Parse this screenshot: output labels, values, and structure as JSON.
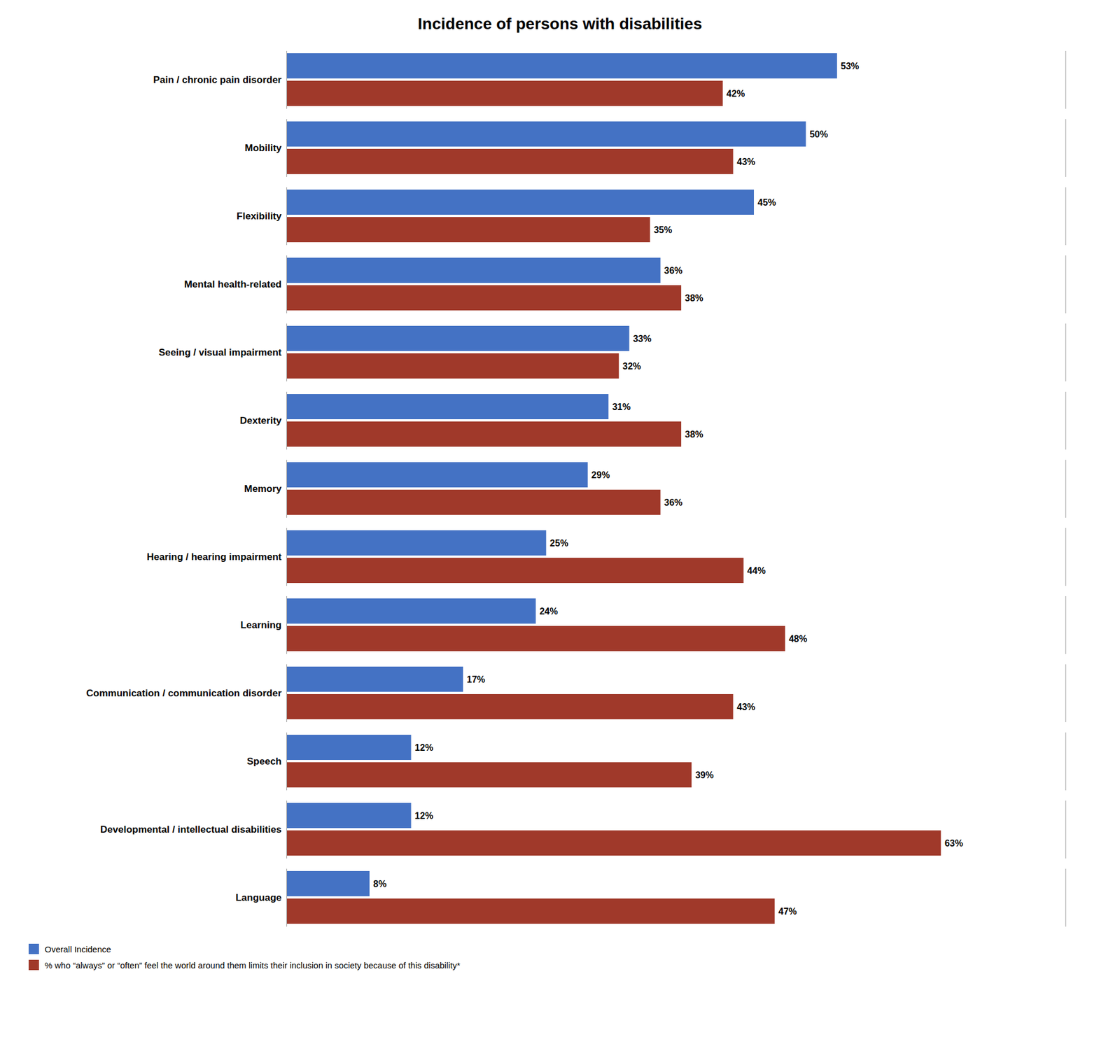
{
  "chart_data": {
    "type": "bar",
    "orientation": "horizontal",
    "title": "Incidence of persons with disabilities",
    "categories": [
      "Pain / chronic pain disorder",
      "Mobility",
      "Flexibility",
      "Mental health-related",
      "Seeing / visual impairment",
      "Dexterity",
      "Memory",
      "Hearing / hearing impairment",
      "Learning",
      "Communication / communication disorder",
      "Speech",
      "Developmental / intellectual disabilities",
      "Language"
    ],
    "series": [
      {
        "name": "Overall Incidence",
        "color": "#4472C4",
        "values": [
          53,
          50,
          45,
          36,
          33,
          31,
          29,
          25,
          24,
          17,
          12,
          12,
          8
        ],
        "value_labels": [
          "53%",
          "50%",
          "45%",
          "36%",
          "33%",
          "31%",
          "29%",
          "25%",
          "24%",
          "17%",
          "12%",
          "12%",
          "8%"
        ]
      },
      {
        "name": "% who “always” or “often” feel the world around them limits their inclusion in society because of this disability*",
        "color": "#A0392A",
        "values": [
          42,
          43,
          35,
          38,
          32,
          38,
          36,
          44,
          48,
          43,
          39,
          63,
          47
        ],
        "value_labels": [
          "42%",
          "43%",
          "35%",
          "38%",
          "32%",
          "38%",
          "36%",
          "44%",
          "48%",
          "43%",
          "39%",
          "63%",
          "47%"
        ]
      }
    ],
    "xlim": [
      0,
      75
    ],
    "data_labels": true,
    "tick_labels": "y",
    "grid": false,
    "legend": "lower left"
  }
}
